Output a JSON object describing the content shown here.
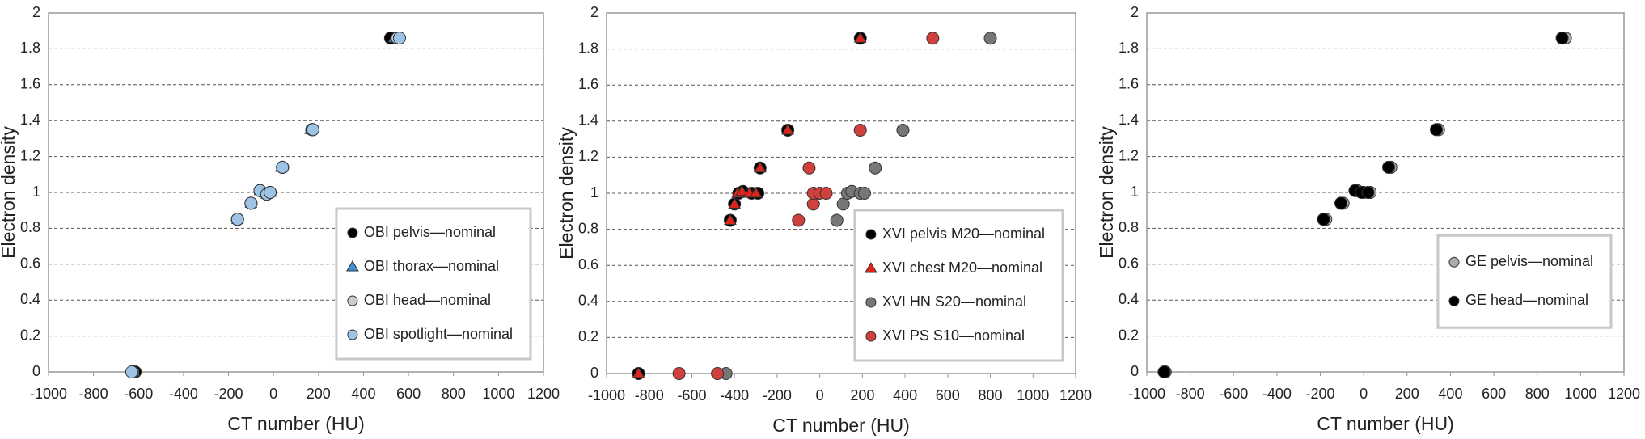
{
  "chart_data": [
    {
      "type": "scatter",
      "xlabel": "CT number (HU)",
      "ylabel": "Electron density",
      "xlim": [
        -1000,
        1200
      ],
      "xticks": [
        -1000,
        -800,
        -600,
        -400,
        -200,
        0,
        200,
        400,
        600,
        800,
        1000,
        1200
      ],
      "ylim": [
        0,
        2
      ],
      "yticks": [
        0,
        0.2,
        0.4,
        0.6,
        0.8,
        1,
        1.2,
        1.4,
        1.6,
        1.8,
        2
      ],
      "grid": true,
      "legend": "lower right",
      "series": [
        {
          "name": "OBI pelvis—nominal",
          "color": "#000000",
          "marker": "circle",
          "x": [
            -615,
            -160,
            -100,
            -60,
            -30,
            -15,
            40,
            170,
            520
          ],
          "values": [
            0,
            0.85,
            0.94,
            1.01,
            0.99,
            1.0,
            1.14,
            1.35,
            1.86
          ]
        },
        {
          "name": "OBI thorax—nominal",
          "color": "#3d8fd6",
          "marker": "triangle",
          "x": [
            -620,
            -160,
            -100,
            -60,
            -30,
            -15,
            35,
            165,
            535
          ],
          "values": [
            0,
            0.85,
            0.94,
            1.01,
            0.99,
            1.0,
            1.14,
            1.35,
            1.86
          ]
        },
        {
          "name": "OBI head—nominal",
          "color": "#cccccc",
          "marker": "circle",
          "x": [
            -625,
            -160,
            -100,
            -60,
            -30,
            -15,
            40,
            175,
            550
          ],
          "values": [
            0,
            0.85,
            0.94,
            1.01,
            0.99,
            1.0,
            1.14,
            1.35,
            1.86
          ]
        },
        {
          "name": "OBI spotlight—nominal",
          "color": "#9dc3e6",
          "marker": "circle",
          "x": [
            -630,
            -160,
            -100,
            -60,
            -30,
            -15,
            40,
            175,
            560
          ],
          "values": [
            0,
            0.85,
            0.94,
            1.01,
            0.99,
            1.0,
            1.14,
            1.35,
            1.86
          ]
        }
      ]
    },
    {
      "type": "scatter",
      "xlabel": "CT number (HU)",
      "ylabel": "Electron density",
      "xlim": [
        -1000,
        1200
      ],
      "xticks": [
        -1000,
        -800,
        -600,
        -400,
        -200,
        0,
        200,
        400,
        600,
        800,
        1000,
        1200
      ],
      "ylim": [
        0,
        2
      ],
      "yticks": [
        0,
        0.2,
        0.4,
        0.6,
        0.8,
        1,
        1.2,
        1.4,
        1.6,
        1.8,
        2
      ],
      "grid": true,
      "legend": "lower right",
      "series": [
        {
          "name": "XVI pelvis M20—nominal",
          "color": "#000000",
          "marker": "circle",
          "x": [
            -850,
            -420,
            -400,
            -380,
            -360,
            -320,
            -290,
            -280,
            -150,
            190
          ],
          "values": [
            0,
            0.85,
            0.94,
            1.0,
            1.01,
            1.0,
            1.0,
            1.14,
            1.35,
            1.86
          ]
        },
        {
          "name": "XVI chest M20—nominal",
          "color": "#e0241b",
          "marker": "triangle",
          "x": [
            -850,
            -420,
            -400,
            -385,
            -365,
            -330,
            -300,
            -280,
            -150,
            190
          ],
          "values": [
            0,
            0.85,
            0.94,
            1.0,
            1.01,
            1.0,
            1.0,
            1.14,
            1.35,
            1.86
          ]
        },
        {
          "name": "XVI HN S20—nominal",
          "color": "#777777",
          "marker": "circle",
          "x": [
            -440,
            80,
            110,
            130,
            150,
            190,
            210,
            260,
            390,
            800
          ],
          "values": [
            0,
            0.85,
            0.94,
            1.0,
            1.01,
            1.0,
            1.0,
            1.14,
            1.35,
            1.86
          ]
        },
        {
          "name": "XVI PS S10—nominal",
          "color": "#d0403c",
          "marker": "circle",
          "x": [
            -660,
            -480,
            -100,
            -30,
            -30,
            0,
            30,
            -50,
            190,
            530
          ],
          "values": [
            0,
            0,
            0.85,
            0.94,
            1.0,
            1.0,
            1.0,
            1.14,
            1.35,
            1.86
          ]
        }
      ]
    },
    {
      "type": "scatter",
      "xlabel": "CT number (HU)",
      "ylabel": "Electron density",
      "xlim": [
        -1000,
        1200
      ],
      "xticks": [
        -1000,
        -800,
        -600,
        -400,
        -200,
        0,
        200,
        400,
        600,
        800,
        1000,
        1200
      ],
      "ylim": [
        0,
        2
      ],
      "yticks": [
        0,
        0.2,
        0.4,
        0.6,
        0.8,
        1,
        1.2,
        1.4,
        1.6,
        1.8,
        2
      ],
      "grid": true,
      "legend": "center right",
      "series": [
        {
          "name": "GE pelvis—nominal",
          "color": "#aaaaaa",
          "marker": "circle",
          "x": [
            -915,
            -175,
            -95,
            -30,
            0,
            30,
            125,
            345,
            930
          ],
          "values": [
            0,
            0.85,
            0.94,
            1.01,
            1.0,
            1.0,
            1.14,
            1.35,
            1.86
          ]
        },
        {
          "name": "GE head—nominal",
          "color": "#000000",
          "marker": "circle",
          "x": [
            -920,
            -185,
            -105,
            -40,
            -10,
            20,
            115,
            335,
            915
          ],
          "values": [
            0,
            0.85,
            0.94,
            1.01,
            1.0,
            1.0,
            1.14,
            1.35,
            1.86
          ]
        }
      ]
    }
  ]
}
